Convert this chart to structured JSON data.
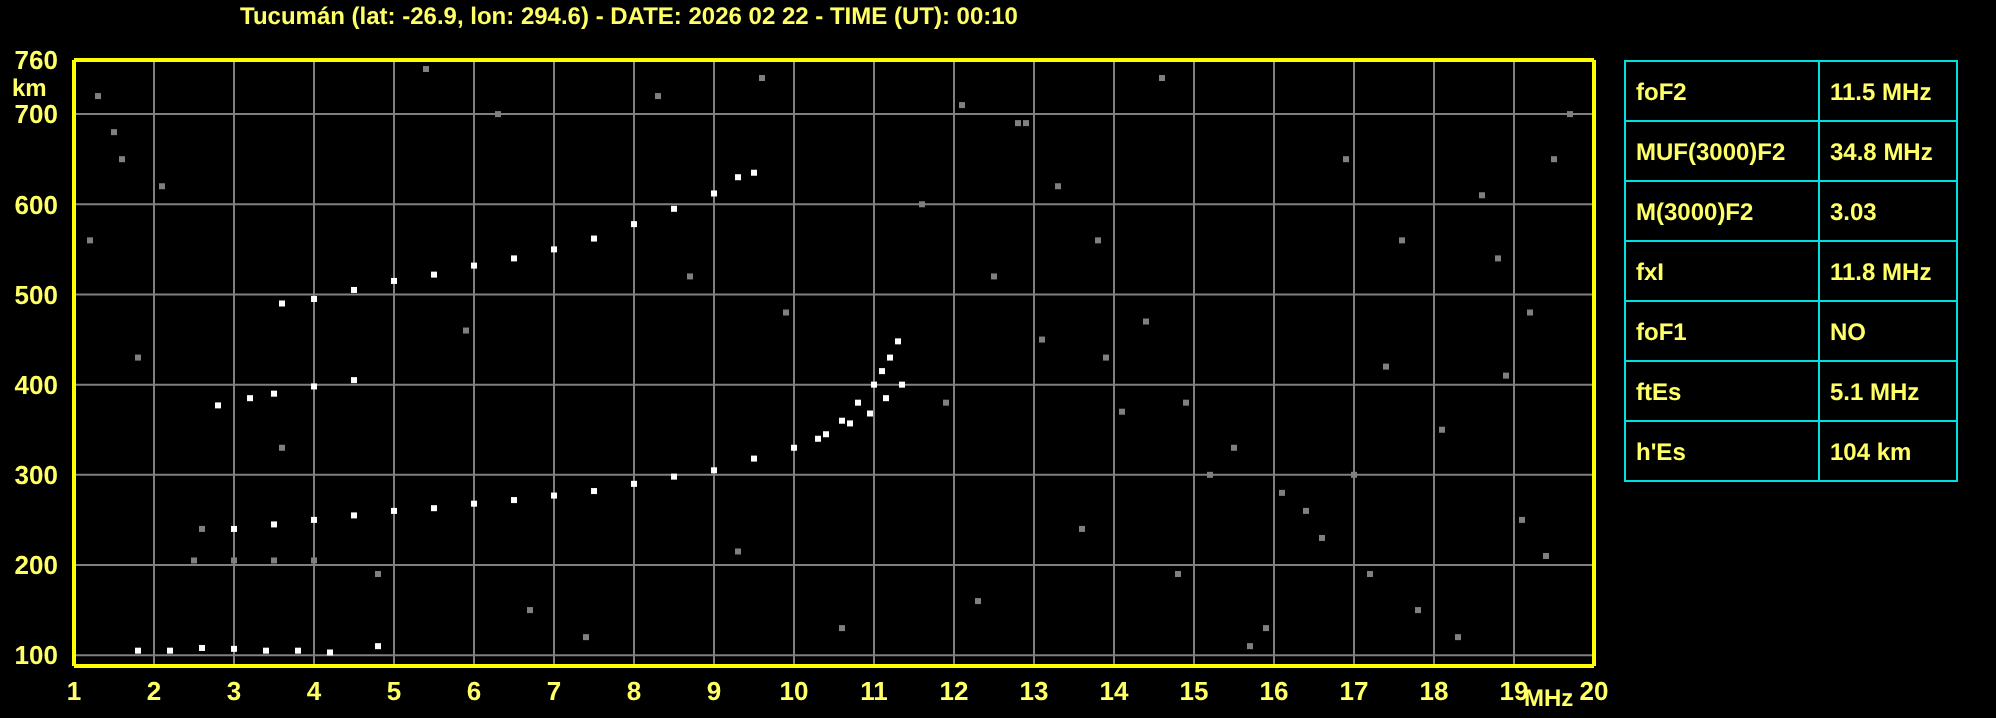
{
  "chart_data": [
    {
      "type": "scatter",
      "title": "Tucumán (lat: -26.9, lon: 294.6) - DATE: 2026 02 22 - TIME (UT): 00:10",
      "xlabel": "MHz",
      "ylabel": "km",
      "xlim": [
        1,
        20
      ],
      "ylim": [
        88,
        760
      ],
      "xticks": [
        1,
        2,
        3,
        4,
        5,
        6,
        7,
        8,
        9,
        10,
        11,
        12,
        13,
        14,
        15,
        16,
        17,
        18,
        19,
        {
          "value": 20,
          "label": "20"
        }
      ],
      "yticks": [
        100,
        200,
        300,
        400,
        500,
        600,
        700,
        760
      ],
      "grid": true,
      "marker": "square",
      "legend": false,
      "series": [
        {
          "color": "#ffffff",
          "x": [
            3.0,
            3.5,
            4.0,
            4.5,
            5.0,
            5.5,
            6.0,
            6.5,
            7.0,
            7.5,
            8.0,
            8.5,
            9.0,
            9.5,
            10.0,
            10.3,
            10.6,
            10.8,
            11.0,
            11.1,
            11.2,
            11.3
          ],
          "values": [
            240,
            245,
            250,
            255,
            260,
            263,
            268,
            272,
            277,
            282,
            290,
            298,
            305,
            318,
            330,
            340,
            360,
            380,
            400,
            415,
            430,
            448
          ]
        },
        {
          "color": "#ffffff",
          "x": [
            10.4,
            10.7,
            10.95,
            11.15,
            11.35
          ],
          "values": [
            345,
            357,
            368,
            385,
            400
          ]
        },
        {
          "color": "#ffffff",
          "x": [
            3.6,
            4.0,
            4.5,
            5.0,
            5.5,
            6.0,
            6.5,
            7.0,
            7.5,
            8.0,
            8.5,
            9.0,
            9.3,
            9.5
          ],
          "values": [
            490,
            495,
            505,
            515,
            522,
            532,
            540,
            550,
            562,
            578,
            595,
            612,
            630,
            635
          ]
        },
        {
          "color": "#ffffff",
          "x": [
            2.8,
            3.2,
            3.5,
            4.0,
            4.5
          ],
          "values": [
            377,
            385,
            390,
            398,
            405
          ]
        },
        {
          "color": "#ffffff",
          "x": [
            1.8,
            2.2,
            2.6,
            3.0,
            3.4,
            3.8,
            4.2,
            4.8
          ],
          "values": [
            105,
            105,
            108,
            107,
            105,
            105,
            103,
            110
          ]
        },
        {
          "color": "#808080",
          "x": [
            2.5,
            3.0,
            3.5,
            4.0
          ],
          "values": [
            205,
            205,
            205,
            205
          ]
        },
        {
          "color": "#808080",
          "x": [
            1.3,
            1.5,
            1.6,
            2.1,
            1.2,
            1.8,
            2.6,
            3.6,
            4.8,
            5.9,
            6.7,
            7.4,
            8.7,
            9.3,
            9.9,
            10.6,
            11.6,
            12.1,
            12.8,
            13.3,
            13.8,
            14.4,
            14.9,
            15.5,
            16.1,
            16.6,
            17.2,
            17.8,
            18.3,
            18.9,
            19.5,
            19.7,
            12.5,
            13.1,
            14.1,
            15.2,
            16.4,
            17.6,
            18.6,
            19.2,
            12.3,
            13.6,
            14.8,
            15.9,
            17.0,
            18.1,
            19.4,
            12.9,
            14.6,
            16.9,
            18.8,
            11.9,
            13.9,
            15.7,
            17.4,
            19.1,
            9.6,
            8.3,
            5.4,
            6.3
          ],
          "values": [
            720,
            680,
            650,
            620,
            560,
            430,
            240,
            330,
            190,
            460,
            150,
            120,
            520,
            215,
            480,
            130,
            600,
            710,
            690,
            620,
            560,
            470,
            380,
            330,
            280,
            230,
            190,
            150,
            120,
            410,
            650,
            700,
            520,
            450,
            370,
            300,
            260,
            560,
            610,
            480,
            160,
            240,
            190,
            130,
            300,
            350,
            210,
            690,
            740,
            650,
            540,
            380,
            430,
            110,
            420,
            250,
            740,
            720,
            750,
            700
          ]
        }
      ]
    },
    {
      "type": "other",
      "annotations": [
        "foF2",
        "11.5 MHz",
        "MUF(3000)F2",
        "34.8 MHz",
        "M(3000)F2",
        "3.03",
        "fxI",
        "11.8 MHz",
        "foF1",
        "NO",
        "ftEs",
        "5.1 MHz",
        "h'Es",
        "104 km"
      ]
    }
  ]
}
